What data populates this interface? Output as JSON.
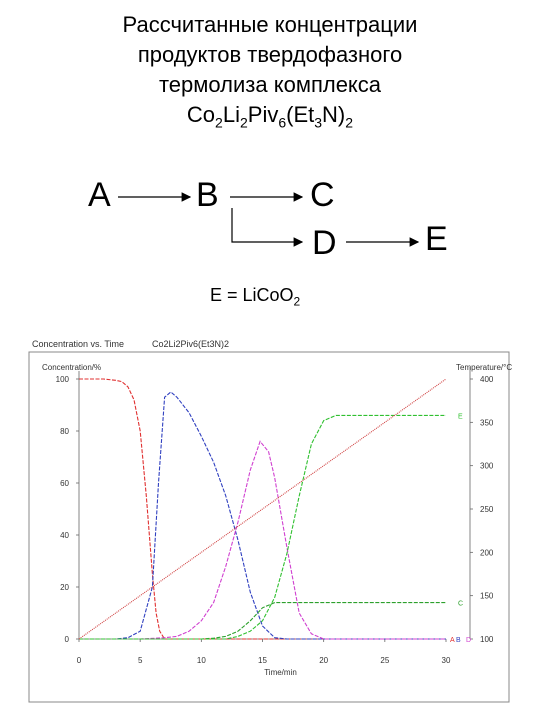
{
  "title": {
    "line1": "Рассчитанные концентрации",
    "line2": "продуктов твердофазного",
    "line3": "термолиза комплекса",
    "formula": {
      "p1": "Co",
      "s1": "2",
      "p2": "Li",
      "s2": "2",
      "p3": "Piv",
      "s3": "6",
      "p4": "(Et",
      "s4": "3",
      "p5": "N)",
      "s5": "2"
    }
  },
  "scheme": {
    "a": "A",
    "b": "B",
    "c": "C",
    "d": "D",
    "e": "E"
  },
  "equation": {
    "lhs": "E = LiCoO",
    "sub": "2"
  },
  "chart_header": {
    "left": "Concentration vs. Time",
    "right": "Co2Li2Piv6(Et3N)2"
  },
  "colors": {
    "A": "#e03030",
    "B": "#3040c0",
    "C": "#2ca02c",
    "D": "#d040d0",
    "E": "#30c030",
    "T": "#d04040"
  },
  "chart_data": {
    "type": "line",
    "xlabel": "Time/min",
    "ylabel": "Concentration/%",
    "y2label": "Temperature/°C",
    "xlim": [
      0,
      30
    ],
    "ylim": [
      0,
      100
    ],
    "y2lim": [
      100,
      400
    ],
    "xticks": [
      0,
      5,
      10,
      15,
      20,
      25,
      30
    ],
    "yticks": [
      0,
      20,
      40,
      60,
      80,
      100
    ],
    "y2ticks": [
      100,
      150,
      200,
      250,
      300,
      350,
      400
    ],
    "series": [
      {
        "name": "A",
        "x": [
          0,
          1,
          2,
          3,
          3.5,
          4,
          4.5,
          5,
          5.5,
          6,
          6.3,
          6.6,
          7,
          8,
          30
        ],
        "y": [
          100,
          100,
          100,
          99.5,
          99,
          97,
          92,
          80,
          55,
          25,
          10,
          3,
          0,
          0,
          0
        ]
      },
      {
        "name": "B",
        "x": [
          0,
          3,
          4,
          5,
          6,
          6.5,
          7,
          7.5,
          8,
          9,
          10,
          11,
          12,
          13,
          14,
          15,
          16,
          17,
          30
        ],
        "y": [
          0,
          0,
          0.5,
          3,
          20,
          60,
          93,
          95,
          93,
          87,
          78,
          68,
          55,
          38,
          18,
          5,
          0.5,
          0,
          0
        ]
      },
      {
        "name": "C",
        "x": [
          0,
          10,
          11,
          12,
          13,
          14,
          15,
          16,
          17,
          18,
          19,
          20,
          21,
          30
        ],
        "y": [
          0,
          0,
          0.3,
          1,
          3,
          7,
          12,
          14,
          14,
          14,
          14,
          14,
          14,
          14
        ]
      },
      {
        "name": "D",
        "x": [
          0,
          5,
          7,
          8,
          9,
          10,
          11,
          12,
          13,
          14,
          14.8,
          15.5,
          16,
          17,
          18,
          19,
          20,
          30
        ],
        "y": [
          0,
          0,
          0.5,
          1,
          3,
          7,
          14,
          28,
          45,
          65,
          76,
          72,
          62,
          35,
          10,
          2,
          0,
          0
        ]
      },
      {
        "name": "E",
        "x": [
          0,
          12,
          13,
          14,
          15,
          16,
          17,
          18,
          19,
          20,
          21,
          22,
          30
        ],
        "y": [
          0,
          0,
          1,
          3,
          7,
          16,
          33,
          55,
          75,
          84,
          86,
          86,
          86
        ]
      },
      {
        "name": "T",
        "axis": "right",
        "x": [
          0,
          30
        ],
        "y": [
          100,
          400
        ]
      }
    ],
    "end_labels": [
      {
        "text": "E",
        "series": "E"
      },
      {
        "text": "C",
        "series": "C"
      },
      {
        "text": "A",
        "series": "A"
      },
      {
        "text": "B",
        "series": "B"
      },
      {
        "text": "D",
        "series": "D"
      }
    ],
    "grid": false
  }
}
